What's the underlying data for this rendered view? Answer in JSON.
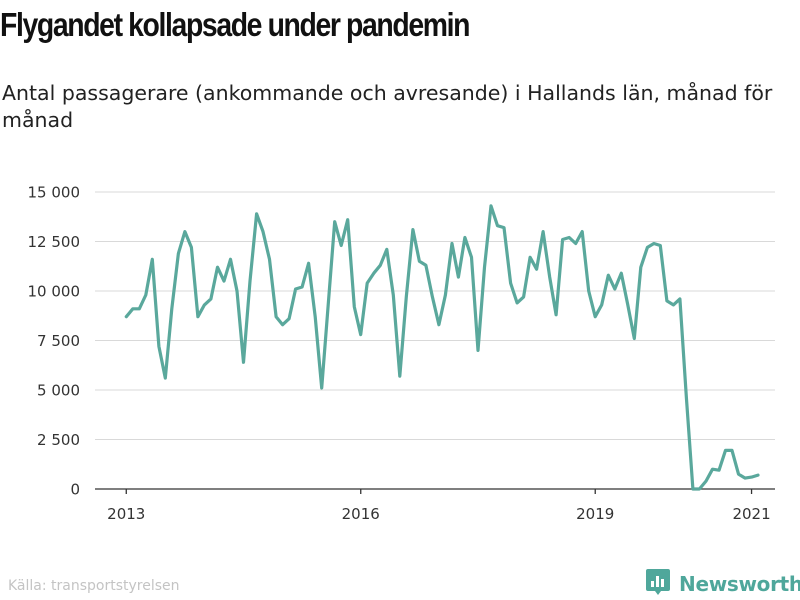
{
  "header": {
    "title": "Flygandet kollapsade under pandemin",
    "subtitle": "Antal passagerare (ankommande och avresande) i Hallands län, månad för månad"
  },
  "footer": {
    "source": "Källa: transportstyrelsen",
    "brand": "Newsworthy",
    "brand_icon": "bar-chart-logo-icon"
  },
  "colors": {
    "line": "#5aa89c",
    "grid": "#d9d9d9",
    "axis": "#333333",
    "brand": "#4fa79b"
  },
  "chart_data": {
    "type": "line",
    "xlabel": "",
    "ylabel": "",
    "ylim": [
      0,
      15000
    ],
    "yticks": [
      0,
      2500,
      5000,
      7500,
      10000,
      12500,
      15000
    ],
    "ytick_labels": [
      "0",
      "2 500",
      "5 000",
      "7 500",
      "10 000",
      "12 500",
      "15 000"
    ],
    "xticks": [
      "2013",
      "2016",
      "2019",
      "2021"
    ],
    "xtick_values": [
      2013.0,
      2016.0,
      2019.0,
      2021.0
    ],
    "xlim": [
      2012.6,
      2021.3
    ],
    "grid": true,
    "legend": "none",
    "x": [
      2013.0,
      2013.083,
      2013.167,
      2013.25,
      2013.333,
      2013.417,
      2013.5,
      2013.583,
      2013.667,
      2013.75,
      2013.833,
      2013.917,
      2014.0,
      2014.083,
      2014.167,
      2014.25,
      2014.333,
      2014.417,
      2014.5,
      2014.583,
      2014.667,
      2014.75,
      2014.833,
      2014.917,
      2015.0,
      2015.083,
      2015.167,
      2015.25,
      2015.333,
      2015.417,
      2015.5,
      2015.583,
      2015.667,
      2015.75,
      2015.833,
      2015.917,
      2016.0,
      2016.083,
      2016.167,
      2016.25,
      2016.333,
      2016.417,
      2016.5,
      2016.583,
      2016.667,
      2016.75,
      2016.833,
      2016.917,
      2017.0,
      2017.083,
      2017.167,
      2017.25,
      2017.333,
      2017.417,
      2017.5,
      2017.583,
      2017.667,
      2017.75,
      2017.833,
      2017.917,
      2018.0,
      2018.083,
      2018.167,
      2018.25,
      2018.333,
      2018.417,
      2018.5,
      2018.583,
      2018.667,
      2018.75,
      2018.833,
      2018.917,
      2019.0,
      2019.083,
      2019.167,
      2019.25,
      2019.333,
      2019.417,
      2019.5,
      2019.583,
      2019.667,
      2019.75,
      2019.833,
      2019.917,
      2020.0,
      2020.083,
      2020.167,
      2020.25,
      2020.333,
      2020.417,
      2020.5,
      2020.583,
      2020.667,
      2020.75,
      2020.833,
      2020.917,
      2021.0,
      2021.083
    ],
    "series": [
      {
        "values": [
          8700,
          9100,
          9100,
          9800,
          11600,
          7200,
          5600,
          9100,
          11900,
          13000,
          12200,
          8700,
          9300,
          9600,
          11200,
          10500,
          11600,
          10000,
          6400,
          10500,
          13900,
          13000,
          11600,
          8700,
          8300,
          8600,
          10100,
          10200,
          11400,
          8700,
          5100,
          9300,
          13500,
          12300,
          13600,
          9200,
          7800,
          10400,
          10900,
          11300,
          12100,
          9800,
          5700,
          9700,
          13100,
          11500,
          11300,
          9700,
          8300,
          9800,
          12400,
          10700,
          12700,
          11700,
          7000,
          11200,
          14300,
          13300,
          13200,
          10400,
          9400,
          9700,
          11700,
          11100,
          13000,
          10700,
          8800,
          12600,
          12700,
          12400,
          13000,
          10000,
          8700,
          9300,
          10800,
          10100,
          10900,
          9300,
          7600,
          11200,
          12200,
          12400,
          12300,
          9500,
          9300,
          9600,
          4600,
          0,
          0,
          400,
          1000,
          950,
          1950,
          1950,
          750,
          550,
          600,
          700
        ]
      }
    ]
  }
}
